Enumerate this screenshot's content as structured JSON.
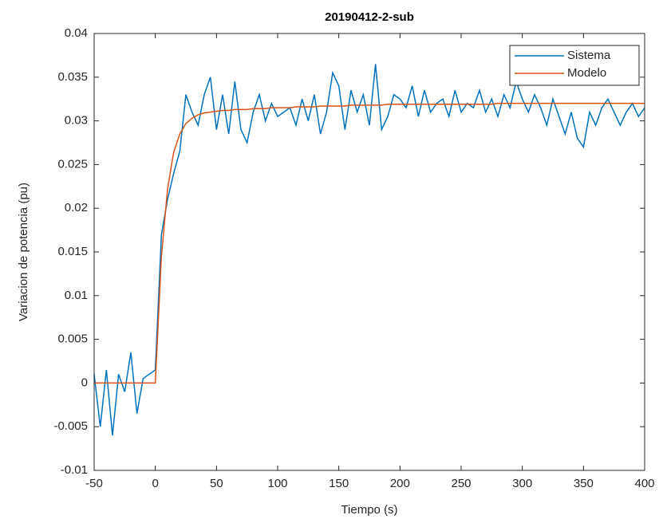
{
  "chart_data": {
    "type": "line",
    "title": "20190412-2-sub",
    "xlabel": "Tiempo (s)",
    "ylabel": "Variacion de potencia (pu)",
    "x": [
      -50,
      -45,
      -40,
      -35,
      -30,
      -25,
      -20,
      -15,
      -10,
      -5,
      0,
      5,
      10,
      15,
      20,
      25,
      30,
      35,
      40,
      45,
      50,
      55,
      60,
      65,
      70,
      75,
      80,
      85,
      90,
      95,
      100,
      105,
      110,
      115,
      120,
      125,
      130,
      135,
      140,
      145,
      150,
      155,
      160,
      165,
      170,
      175,
      180,
      185,
      190,
      195,
      200,
      205,
      210,
      215,
      220,
      225,
      230,
      235,
      240,
      245,
      250,
      255,
      260,
      265,
      270,
      275,
      280,
      285,
      290,
      295,
      300,
      305,
      310,
      315,
      320,
      325,
      330,
      335,
      340,
      345,
      350,
      355,
      360,
      365,
      370,
      375,
      380,
      385,
      390,
      395,
      400
    ],
    "series": [
      {
        "name": "Sistema",
        "color": "#0072bd",
        "values": [
          0.001,
          -0.005,
          0.0015,
          -0.006,
          0.001,
          -0.001,
          0.0035,
          -0.0035,
          0.0005,
          0.001,
          0.0015,
          0.017,
          0.021,
          0.024,
          0.0265,
          0.033,
          0.031,
          0.0295,
          0.033,
          0.035,
          0.029,
          0.033,
          0.0285,
          0.0345,
          0.029,
          0.0275,
          0.031,
          0.033,
          0.03,
          0.032,
          0.0305,
          0.031,
          0.0315,
          0.0295,
          0.0325,
          0.03,
          0.033,
          0.0285,
          0.031,
          0.0355,
          0.034,
          0.029,
          0.0335,
          0.031,
          0.033,
          0.0295,
          0.0365,
          0.029,
          0.0305,
          0.033,
          0.0325,
          0.0315,
          0.034,
          0.0305,
          0.0335,
          0.031,
          0.032,
          0.0325,
          0.0305,
          0.0335,
          0.031,
          0.032,
          0.0315,
          0.0335,
          0.031,
          0.0325,
          0.0305,
          0.033,
          0.0315,
          0.0345,
          0.0325,
          0.031,
          0.033,
          0.0315,
          0.0295,
          0.0325,
          0.0305,
          0.0285,
          0.031,
          0.028,
          0.027,
          0.031,
          0.0295,
          0.0315,
          0.0325,
          0.031,
          0.0295,
          0.031,
          0.032,
          0.0305,
          0.0315
        ]
      },
      {
        "name": "Modelo",
        "color": "#d95319",
        "values": [
          0,
          0,
          0,
          0,
          0,
          0,
          0,
          0,
          0,
          0,
          0,
          0.0145,
          0.0222,
          0.0264,
          0.0285,
          0.0297,
          0.0303,
          0.0307,
          0.0309,
          0.031,
          0.0311,
          0.0312,
          0.0312,
          0.0313,
          0.0313,
          0.0313,
          0.0314,
          0.0314,
          0.0314,
          0.0315,
          0.0315,
          0.0315,
          0.0315,
          0.0316,
          0.0316,
          0.0316,
          0.0316,
          0.0317,
          0.0317,
          0.0317,
          0.0317,
          0.0317,
          0.0318,
          0.0318,
          0.0318,
          0.0318,
          0.0318,
          0.0318,
          0.0319,
          0.0319,
          0.0319,
          0.0319,
          0.0319,
          0.0319,
          0.0319,
          0.0319,
          0.0319,
          0.0319,
          0.0319,
          0.0319,
          0.0319,
          0.0319,
          0.0319,
          0.0319,
          0.0319,
          0.0319,
          0.032,
          0.032,
          0.032,
          0.032,
          0.032,
          0.032,
          0.032,
          0.032,
          0.032,
          0.032,
          0.032,
          0.032,
          0.032,
          0.032,
          0.032,
          0.032,
          0.032,
          0.032,
          0.032,
          0.032,
          0.032,
          0.032,
          0.032,
          0.032,
          0.032
        ]
      }
    ],
    "xlim": [
      -50,
      400
    ],
    "xticks": [
      -50,
      0,
      50,
      100,
      150,
      200,
      250,
      300,
      350,
      400
    ],
    "ylim": [
      -0.01,
      0.04
    ],
    "yticks": [
      -0.01,
      -0.005,
      0,
      0.005,
      0.01,
      0.015,
      0.02,
      0.025,
      0.03,
      0.035,
      0.04
    ],
    "legend": "top-right"
  }
}
